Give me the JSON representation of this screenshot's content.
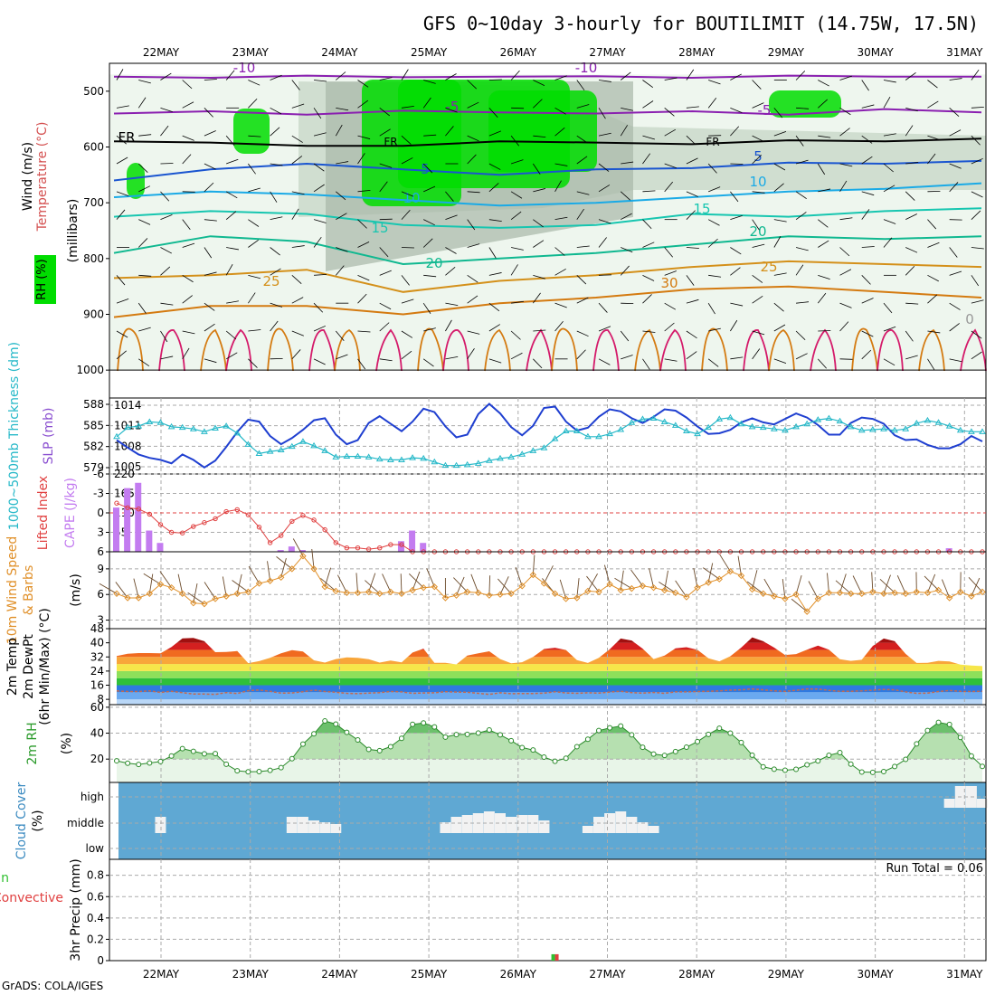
{
  "title": "GFS 0~10day 3-hourly for BOUTILIMIT (14.75W, 17.5N)",
  "footer": "GrADS: COLA/IGES",
  "days": [
    "22MAY",
    "23MAY",
    "24MAY",
    "25MAY",
    "26MAY",
    "27MAY",
    "28MAY",
    "29MAY",
    "30MAY",
    "31MAY"
  ],
  "colors": {
    "grid": "#999999",
    "frame": "#000000",
    "green": "#00dd00",
    "cloud": "#5fa8d3",
    "cloudWhite": "#f2f2f2"
  },
  "chart_data": [
    {
      "type": "heatmap",
      "panel": "upper-air",
      "ylabels": [
        "Wind (m/s)",
        "Temperature (°C)",
        "(millibars)",
        "RH (%)"
      ],
      "yticks": [
        500,
        600,
        700,
        800,
        900,
        1000
      ],
      "ylim": [
        450,
        1050
      ],
      "contour_labels": [
        "-10",
        "-5",
        "FR",
        "5",
        "10",
        "15",
        "20",
        "25",
        "30",
        "0"
      ],
      "isotherms": [
        {
          "name": "-10",
          "color": "#8a1fb0",
          "p": [
            474,
            476,
            472,
            475,
            474,
            473,
            476,
            472,
            474,
            474
          ]
        },
        {
          "name": "-5",
          "color": "#8a1fb0",
          "p": [
            540,
            536,
            542,
            535,
            538,
            540,
            536,
            542,
            532,
            538
          ]
        },
        {
          "name": "FR",
          "color": "#000000",
          "p": [
            590,
            592,
            598,
            598,
            590,
            592,
            595,
            588,
            590,
            585
          ]
        },
        {
          "name": "5",
          "color": "#1a55d0",
          "p": [
            660,
            640,
            630,
            640,
            650,
            640,
            638,
            628,
            630,
            625
          ]
        },
        {
          "name": "10",
          "color": "#1aaae6",
          "p": [
            690,
            680,
            685,
            695,
            705,
            700,
            690,
            680,
            675,
            665
          ]
        },
        {
          "name": "15",
          "color": "#17c6b0",
          "p": [
            725,
            715,
            720,
            740,
            745,
            740,
            720,
            725,
            715,
            710
          ]
        },
        {
          "name": "20",
          "color": "#10b890",
          "p": [
            790,
            760,
            770,
            810,
            800,
            790,
            775,
            760,
            765,
            760
          ]
        },
        {
          "name": "25",
          "color": "#d4901a",
          "p": [
            835,
            830,
            820,
            860,
            840,
            830,
            815,
            805,
            810,
            815
          ]
        },
        {
          "name": "30",
          "color": "#d47a10",
          "p": [
            905,
            885,
            885,
            900,
            880,
            870,
            855,
            850,
            860,
            870
          ]
        }
      ]
    },
    {
      "type": "line",
      "panel": "slp-thickness",
      "ylabels": [
        "1000~500mb Thickness (dm)",
        "SLP (mb)"
      ],
      "yticks_left": [
        579,
        582,
        585,
        588
      ],
      "yticks_right": [
        1005,
        1008,
        1011,
        1014
      ],
      "series": [
        {
          "name": "SLP",
          "values": [
            1008.9,
            1007.8,
            1006.8,
            1006.3,
            1006.0,
            1005.5,
            1006.8,
            1006.0,
            1004.9,
            1005.9,
            1007.9,
            1010.1,
            1011.9,
            1011.6,
            1009.5,
            1008.3,
            1009.2,
            1010.4,
            1011.8,
            1012.1,
            1009.7,
            1008.3,
            1008.9,
            1011.4,
            1012.4,
            1011.3,
            1010.2,
            1011.6,
            1013.5,
            1013.0,
            1010.9,
            1009.3,
            1009.7,
            1012.7,
            1014.2,
            1012.8,
            1010.8,
            1009.6,
            1011.0,
            1013.6,
            1013.8,
            1011.6,
            1010.3,
            1010.7,
            1012.3,
            1013.4,
            1013.1,
            1012.1,
            1011.4,
            1012.3,
            1013.4,
            1013.2,
            1012.2,
            1010.9,
            1009.8,
            1009.9,
            1010.4,
            1011.5,
            1012.1,
            1011.5,
            1011.2,
            1012.0,
            1012.8,
            1012.2,
            1011.1,
            1009.7,
            1009.7,
            1011.4,
            1012.2,
            1012.0,
            1011.3,
            1009.6,
            1008.9,
            1009.0,
            1008.2,
            1007.7,
            1007.7,
            1008.3,
            1009.5,
            1008.7
          ]
        },
        {
          "name": "Thickness",
          "values": [
            583.4,
            584.7,
            584.9,
            585.5,
            585.4,
            584.8,
            584.7,
            584.5,
            584.1,
            584.6,
            584.9,
            583.9,
            582.3,
            581.0,
            581.3,
            581.5,
            582.0,
            582.7,
            582.1,
            581.4,
            580.5,
            580.6,
            580.6,
            580.5,
            580.2,
            580.1,
            580.1,
            580.4,
            580.3,
            579.8,
            579.3,
            579.3,
            579.4,
            579.6,
            580.0,
            580.3,
            580.5,
            580.9,
            581.4,
            581.8,
            583.1,
            584.2,
            584.2,
            583.4,
            583.4,
            583.8,
            584.4,
            585.4,
            585.9,
            586.0,
            585.5,
            585.0,
            584.2,
            583.8,
            584.7,
            585.9,
            586.1,
            585.2,
            584.8,
            584.7,
            584.5,
            584.3,
            584.8,
            585.2,
            585.8,
            586.0,
            585.6,
            584.8,
            584.3,
            584.4,
            584.5,
            584.3,
            584.5,
            585.3,
            585.7,
            585.4,
            584.9,
            584.3,
            584.1,
            584.1
          ]
        }
      ]
    },
    {
      "type": "bar",
      "panel": "li-cape",
      "ylabels": [
        "Lifted Index",
        "CAPE (J/kg)"
      ],
      "yticks_left": [
        -6,
        -3,
        0,
        3,
        6
      ],
      "yticks_right": [
        55,
        110,
        165,
        220
      ],
      "bars_cape": [
        125,
        180,
        195,
        60,
        25,
        0,
        0,
        0,
        0,
        0,
        0,
        0,
        0,
        0,
        0,
        5,
        15,
        5,
        0,
        0,
        0,
        0,
        0,
        0,
        0,
        0,
        30,
        60,
        25,
        0,
        0,
        0,
        0,
        0,
        0,
        0,
        0,
        0,
        0,
        0,
        0,
        0,
        0,
        0,
        0,
        0,
        0,
        0,
        0,
        0,
        0,
        0,
        0,
        0,
        0,
        0,
        0,
        0,
        0,
        0,
        0,
        0,
        0,
        0,
        0,
        0,
        0,
        0,
        0,
        0,
        0,
        0,
        0,
        0,
        0,
        0,
        10,
        0,
        0,
        0
      ],
      "lifted_index": [
        -1.5,
        -0.8,
        -0.6,
        0.2,
        1.8,
        3.0,
        3.1,
        2.1,
        1.5,
        0.9,
        -0.2,
        -0.5,
        0.3,
        2.2,
        4.6,
        3.5,
        1.3,
        0.4,
        1.1,
        2.6,
        4.6,
        5.4,
        5.4,
        5.6,
        5.4,
        4.9,
        4.9,
        6.0,
        6.0,
        6.0,
        6.0,
        6.0,
        6.0,
        6.0,
        6.0,
        6.0,
        6.0,
        6.0,
        6.0,
        6.0,
        6.0,
        6.0,
        6.0,
        6.0,
        6.0,
        6.0,
        6.0,
        6.0,
        6.0,
        6.0,
        6.0,
        6.0,
        6.0,
        6.0,
        6.0,
        6.0,
        6.0,
        6.0,
        6.0,
        6.0,
        6.0,
        6.0,
        6.0,
        6.0,
        6.0,
        6.0,
        6.0,
        6.0,
        6.0,
        6.0,
        6.0,
        6.0,
        6.0,
        6.0,
        6.0,
        6.0,
        6.0,
        6.0,
        6.0,
        6.0
      ]
    },
    {
      "type": "line",
      "panel": "wind10m",
      "ylabels": [
        "10m Wind Speed",
        "& Barbs",
        "(m/s)"
      ],
      "yticks": [
        3,
        6,
        9
      ],
      "ylim": [
        2,
        11
      ],
      "series": [
        {
          "name": "Speed",
          "values": [
            6.1,
            5.6,
            5.6,
            6.1,
            7.2,
            6.8,
            6.1,
            5.0,
            4.9,
            5.5,
            5.8,
            6.1,
            6.3,
            7.3,
            7.6,
            8.0,
            9.0,
            10.5,
            9.0,
            6.9,
            6.4,
            6.2,
            6.2,
            6.3,
            6.1,
            6.3,
            6.1,
            6.5,
            6.8,
            6.9,
            5.6,
            5.9,
            6.3,
            6.2,
            5.9,
            6.0,
            6.1,
            7.0,
            8.3,
            7.3,
            6.1,
            5.5,
            5.6,
            6.4,
            6.3,
            7.2,
            6.5,
            6.7,
            7.0,
            6.8,
            6.5,
            6.2,
            5.7,
            6.8,
            7.4,
            7.8,
            8.7,
            8.2,
            6.6,
            6.1,
            5.8,
            5.5,
            6.0,
            4.0,
            5.5,
            6.2,
            6.2,
            6.1,
            6.1,
            6.3,
            6.1,
            6.2,
            6.1,
            6.3,
            6.2,
            6.5,
            5.6,
            6.3,
            5.8,
            6.3
          ]
        }
      ]
    },
    {
      "type": "area",
      "panel": "temp2m",
      "ylabels": [
        "2m Temp",
        "2m DewPt",
        "(6hr Min/Max) (°C)"
      ],
      "yticks": [
        8,
        16,
        24,
        32,
        40,
        48
      ],
      "ylim": [
        5,
        48
      ],
      "series": [
        {
          "name": "Temp",
          "values": [
            32.5,
            33.8,
            34.2,
            34.2,
            34.0,
            37.6,
            42.5,
            42.8,
            40.9,
            34.7,
            34.8,
            35.3,
            28.5,
            29.6,
            31.5,
            34.0,
            35.8,
            35.1,
            30.1,
            28.8,
            30.8,
            31.7,
            31.5,
            30.7,
            28.8,
            30.0,
            28.9,
            34.5,
            36.7,
            28.7,
            28.7,
            27.8,
            32.8,
            34.0,
            35.2,
            30.8,
            28.4,
            29.0,
            32.0,
            36.5,
            37.2,
            35.9,
            30.2,
            28.6,
            31.5,
            36.4,
            42.4,
            41.3,
            36.7,
            30.8,
            32.8,
            36.9,
            37.5,
            36.0,
            31.2,
            29.5,
            32.4,
            37.3,
            43.1,
            40.9,
            37.3,
            33.1,
            33.6,
            36.1,
            38.4,
            36.1,
            30.7,
            29.8,
            30.4,
            38.2,
            42.4,
            40.9,
            33.7,
            28.6,
            28.7,
            29.8,
            29.4,
            27.7,
            27.1,
            26.8
          ]
        },
        {
          "name": "DewPt",
          "values": [
            12.8,
            12.4,
            12.4,
            12.8,
            11.9,
            12.6,
            11.8,
            11.0,
            11.0,
            10.8,
            11.8,
            11.3,
            12.9,
            13.3,
            12.5,
            11.5,
            11.6,
            12.3,
            13.2,
            12.4,
            12.0,
            11.4,
            11.2,
            11.5,
            11.8,
            12.4,
            12.2,
            11.4,
            11.6,
            11.7,
            12.3,
            12.1,
            12.0,
            11.4,
            10.8,
            11.7,
            11.2,
            11.3,
            11.3,
            11.5,
            12.3,
            11.6,
            11.4,
            11.7,
            11.5,
            12.1,
            12.6,
            11.8,
            11.5,
            11.9,
            11.4,
            12.2,
            12.2,
            12.4,
            12.5,
            12.8,
            13.2,
            13.4,
            13.9,
            13.4,
            12.8,
            12.6,
            13.1,
            13.9,
            13.8,
            13.1,
            12.5,
            12.6,
            12.8,
            13.2,
            13.6,
            13.4,
            12.2,
            11.4,
            11.5,
            12.4,
            13.0,
            12.5,
            12.4,
            12.6
          ]
        }
      ]
    },
    {
      "type": "area",
      "panel": "rh2m",
      "ylabels": [
        "2m RH",
        "(%)"
      ],
      "yticks": [
        20,
        40,
        60
      ],
      "ylim": [
        2,
        62
      ],
      "series": [
        {
          "name": "RH",
          "values": [
            18.7,
            16.8,
            15.9,
            17.0,
            18.1,
            22.4,
            28.1,
            26.0,
            24.1,
            24.2,
            16.0,
            11.0,
            10.2,
            10.4,
            11.3,
            13.4,
            20.3,
            31.6,
            39.5,
            49.4,
            47.0,
            40.6,
            34.8,
            27.5,
            26.5,
            29.6,
            36.0,
            46.8,
            47.9,
            44.8,
            37.0,
            38.9,
            39.1,
            40.1,
            42.5,
            38.7,
            34.2,
            28.9,
            27.0,
            21.5,
            18.3,
            20.7,
            29.6,
            35.3,
            42.0,
            44.1,
            45.5,
            38.7,
            29.1,
            23.9,
            22.8,
            25.8,
            29.2,
            33.5,
            39.1,
            43.8,
            40.0,
            32.8,
            23.0,
            14.0,
            12.2,
            11.4,
            12.1,
            15.6,
            18.6,
            22.9,
            25.0,
            16.1,
            10.0,
            9.8,
            10.4,
            14.3,
            19.8,
            31.7,
            42.0,
            48.3,
            46.7,
            36.7,
            22.4,
            14.4
          ]
        }
      ]
    },
    {
      "type": "bar",
      "panel": "cloud",
      "ylabels": [
        "Cloud Cover",
        "(%)"
      ],
      "yticks": [
        "low",
        "middle",
        "high"
      ],
      "middle": [
        0,
        0,
        0,
        0,
        18,
        0,
        0,
        0,
        0,
        0,
        0,
        0,
        0,
        0,
        0,
        0,
        18,
        18,
        14,
        12,
        10,
        0,
        0,
        0,
        0,
        0,
        0,
        0,
        0,
        0,
        12,
        18,
        20,
        22,
        24,
        22,
        18,
        20,
        20,
        14,
        0,
        0,
        0,
        8,
        18,
        22,
        24,
        18,
        12,
        8,
        0,
        0,
        0,
        0,
        0,
        0,
        0,
        0,
        0,
        0,
        0,
        0,
        0,
        0,
        0,
        0,
        0,
        0,
        0,
        0,
        0,
        0,
        0,
        0,
        0,
        0,
        0,
        0,
        0,
        0
      ],
      "high": [
        0,
        0,
        0,
        0,
        0,
        0,
        0,
        0,
        0,
        0,
        0,
        0,
        0,
        0,
        0,
        0,
        0,
        0,
        0,
        0,
        0,
        0,
        0,
        0,
        0,
        0,
        0,
        0,
        0,
        0,
        0,
        0,
        0,
        0,
        0,
        0,
        0,
        0,
        0,
        0,
        0,
        0,
        0,
        0,
        0,
        0,
        0,
        0,
        0,
        0,
        0,
        0,
        0,
        0,
        0,
        0,
        0,
        0,
        0,
        0,
        0,
        0,
        0,
        0,
        0,
        0,
        0,
        0,
        0,
        0,
        0,
        0,
        0,
        0,
        0,
        0,
        10,
        24,
        24,
        10
      ]
    },
    {
      "type": "bar",
      "panel": "precip",
      "ylabels": [
        "Total / Rain",
        "Convective",
        "3hr Precip (mm)"
      ],
      "yticks": [
        0,
        0.2,
        0.4,
        0.6,
        0.8
      ],
      "ylim": [
        0,
        0.95
      ],
      "run_total": "Run Total = 0.06",
      "values": [
        0,
        0,
        0,
        0,
        0,
        0,
        0,
        0,
        0,
        0,
        0,
        0,
        0,
        0,
        0,
        0,
        0,
        0,
        0,
        0,
        0,
        0,
        0,
        0,
        0,
        0,
        0,
        0,
        0,
        0,
        0,
        0,
        0,
        0,
        0,
        0,
        0,
        0,
        0,
        0,
        0.06,
        0,
        0,
        0,
        0,
        0,
        0,
        0,
        0,
        0,
        0,
        0,
        0,
        0,
        0,
        0,
        0,
        0,
        0,
        0,
        0,
        0,
        0,
        0,
        0,
        0,
        0,
        0,
        0,
        0,
        0,
        0,
        0,
        0,
        0,
        0,
        0,
        0,
        0,
        0
      ]
    }
  ]
}
